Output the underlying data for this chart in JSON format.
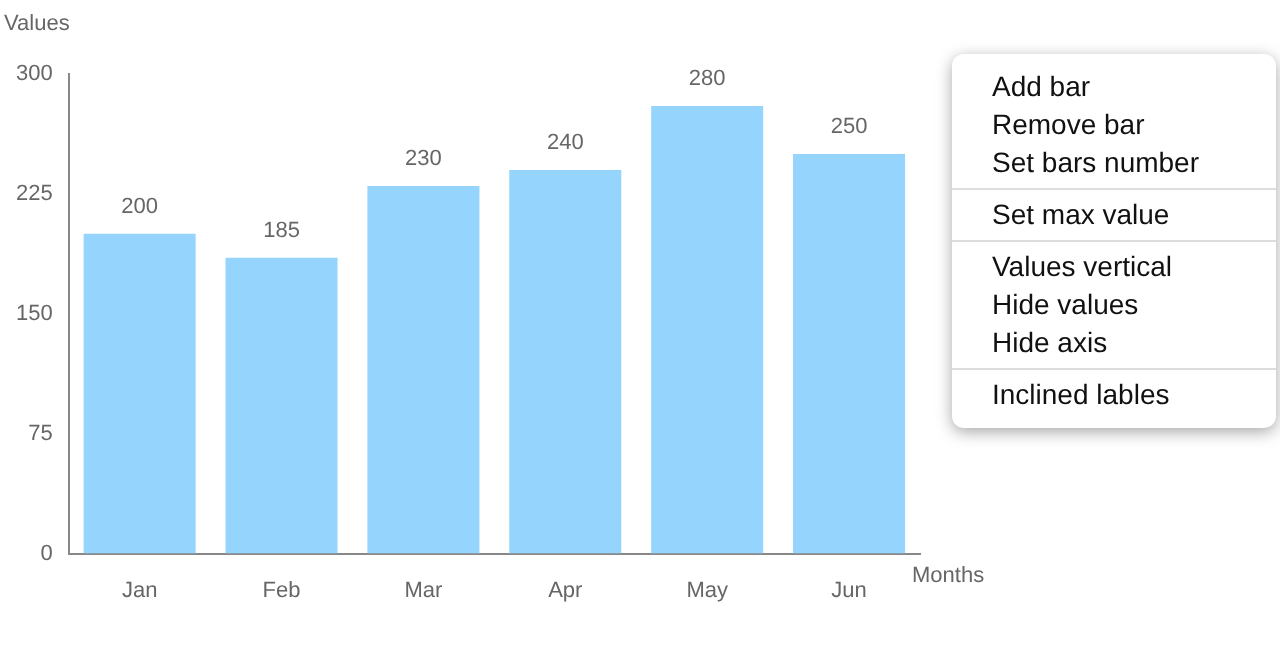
{
  "chart_data": {
    "type": "bar",
    "categories": [
      "Jan",
      "Feb",
      "Mar",
      "Apr",
      "May",
      "Jun"
    ],
    "values": [
      200,
      185,
      230,
      240,
      280,
      250
    ],
    "color": "#95d5fd",
    "ylim": [
      0,
      300
    ],
    "yticks": [
      0,
      75,
      150,
      225,
      300
    ],
    "xlabel": "Months",
    "ylabel": "Values",
    "data_labels": true,
    "grid": false,
    "legend": false,
    "annotations": [
      "Add bar",
      "Remove bar",
      "Set bars number",
      "Set max value",
      "Values vertical",
      "Hide values",
      "Hide axis",
      "Inclined lables"
    ]
  }
}
